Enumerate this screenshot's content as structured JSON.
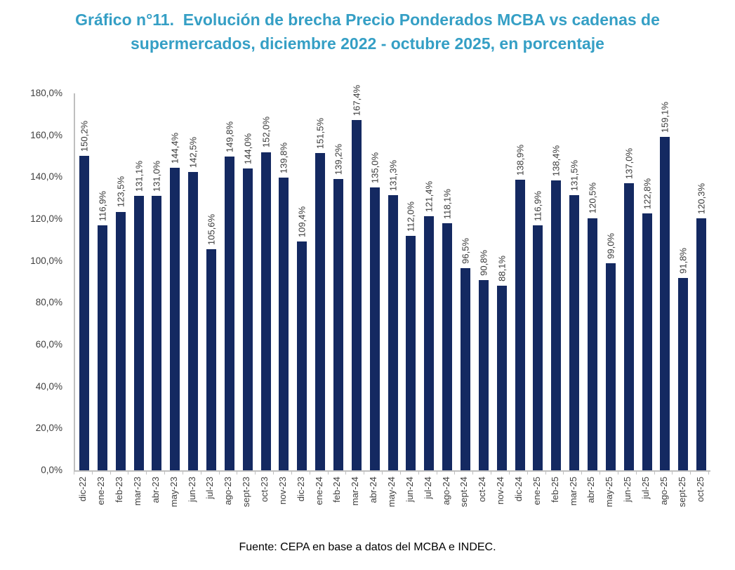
{
  "title": {
    "line1": "Gráfico n°11.  Evolución de brecha Precio Ponderados MCBA vs cadenas de",
    "line2": "supermercados, diciembre 2022 - octubre 2025, en porcentaje"
  },
  "footer": {
    "source": "Fuente: CEPA en base a datos del MCBA e INDEC."
  },
  "colors": {
    "bar_color": "#142961",
    "title_color": "#359FC5",
    "axis_color": "#BFBFBF",
    "tick_label_color": "#3F3F3F",
    "value_label_color": "#3A3A3A",
    "footer_color": "#000000"
  },
  "chart_data": {
    "type": "bar",
    "title": "Gráfico n°11. Evolución de brecha Precio Ponderados MCBA vs cadenas de supermercados, diciembre 2022 - octubre 2025, en porcentaje",
    "xlabel": "",
    "ylabel": "",
    "ylim": [
      0,
      180
    ],
    "grid": false,
    "legend": false,
    "y_ticks": [
      "180,0%",
      "160,0%",
      "140,0%",
      "120,0%",
      "100,0%",
      "80,0%",
      "60,0%",
      "40,0%",
      "20,0%",
      "0,0%"
    ],
    "categories": [
      "dic-22",
      "ene-23",
      "feb-23",
      "mar-23",
      "abr-23",
      "may-23",
      "jun-23",
      "jul-23",
      "ago-23",
      "sept-23",
      "oct-23",
      "nov-23",
      "dic-23",
      "ene-24",
      "feb-24",
      "mar-24",
      "abr-24",
      "may-24",
      "jun-24",
      "jul-24",
      "ago-24",
      "sept-24",
      "oct-24",
      "nov-24",
      "dic-24",
      "ene-25",
      "feb-25",
      "mar-25",
      "abr-25",
      "may-25",
      "jun-25",
      "jul-25",
      "ago-25",
      "sept-25",
      "oct-25"
    ],
    "values": [
      150.2,
      116.9,
      123.5,
      131.1,
      131.0,
      144.4,
      142.5,
      105.6,
      149.8,
      144.0,
      152.0,
      139.8,
      109.4,
      151.5,
      139.2,
      167.4,
      135.0,
      131.3,
      112.0,
      121.4,
      118.1,
      96.5,
      90.8,
      88.1,
      138.9,
      116.9,
      138.4,
      131.5,
      120.5,
      99.0,
      137.0,
      122.8,
      159.1,
      91.8,
      120.3
    ],
    "labels": [
      "150,2%",
      "116,9%",
      "123,5%",
      "131,1%",
      "131,0%",
      "144,4%",
      "142,5%",
      "105,6%",
      "149,8%",
      "144,0%",
      "152,0%",
      "139,8%",
      "109,4%",
      "151,5%",
      "139,2%",
      "167,4%",
      "135,0%",
      "131,3%",
      "112,0%",
      "121,4%",
      "118,1%",
      "96,5%",
      "90,8%",
      "88,1%",
      "138,9%",
      "116,9%",
      "138,4%",
      "131,5%",
      "120,5%",
      "99,0%",
      "137,0%",
      "122,8%",
      "159,1%",
      "91,8%",
      "120,3%"
    ],
    "source_note": "Fuente: CEPA en base a datos del MCBA e INDEC."
  }
}
